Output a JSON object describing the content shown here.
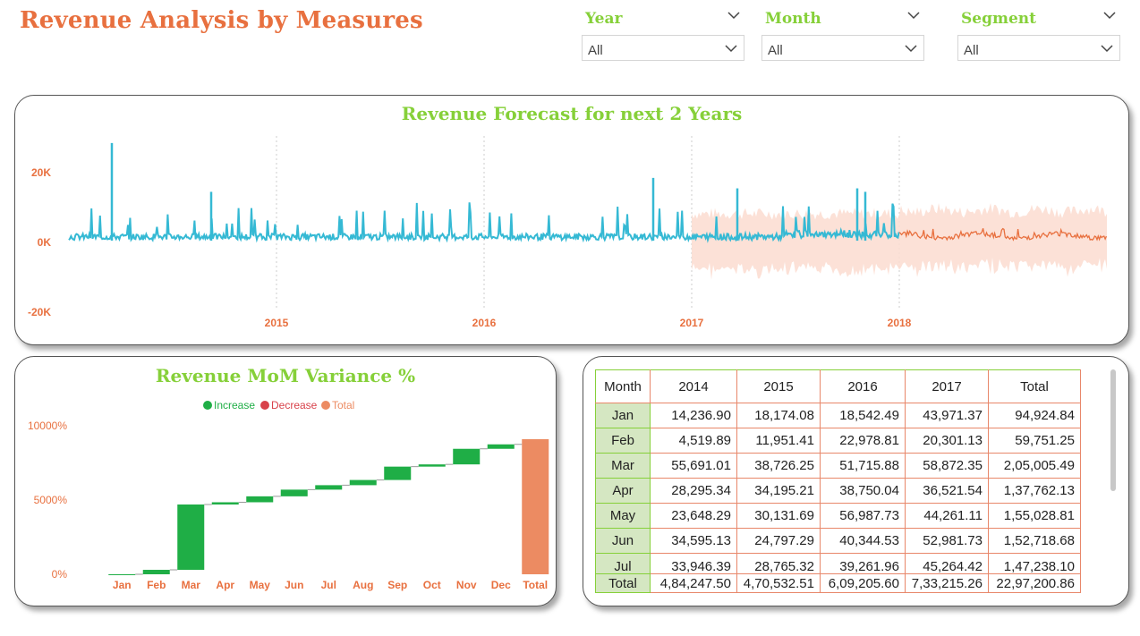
{
  "title": "Revenue Analysis by Measures",
  "slicers": [
    {
      "label": "Year",
      "value": "All"
    },
    {
      "label": "Month",
      "value": "All"
    },
    {
      "label": "Segment",
      "value": "All"
    }
  ],
  "forecast": {
    "title": "Revenue Forecast for next 2 Years",
    "y_ticks": [
      "20K",
      "0K",
      "-20K"
    ],
    "x_ticks": [
      "2015",
      "2016",
      "2017",
      "2018"
    ]
  },
  "variance": {
    "title": "Revenue MoM Variance %",
    "legend": [
      "Increase",
      "Decrease",
      "Total"
    ],
    "y_ticks": [
      "10000%",
      "5000%",
      "0%"
    ]
  },
  "matrix": {
    "header": [
      "Month",
      "2014",
      "2015",
      "2016",
      "2017",
      "Total"
    ],
    "rows": [
      [
        "Jan",
        "14,236.90",
        "18,174.08",
        "18,542.49",
        "43,971.37",
        "94,924.84"
      ],
      [
        "Feb",
        "4,519.89",
        "11,951.41",
        "22,978.81",
        "20,301.13",
        "59,751.25"
      ],
      [
        "Mar",
        "55,691.01",
        "38,726.25",
        "51,715.88",
        "58,872.35",
        "2,05,005.49"
      ],
      [
        "Apr",
        "28,295.34",
        "34,195.21",
        "38,750.04",
        "36,521.54",
        "1,37,762.13"
      ],
      [
        "May",
        "23,648.29",
        "30,131.69",
        "56,987.73",
        "44,261.11",
        "1,55,028.81"
      ],
      [
        "Jun",
        "34,595.13",
        "24,797.29",
        "40,344.53",
        "52,981.73",
        "1,52,718.68"
      ],
      [
        "Jul",
        "33,946.39",
        "28,765.32",
        "39,261.96",
        "45,264.42",
        "1,47,238.10"
      ]
    ],
    "total": [
      "Total",
      "4,84,247.50",
      "4,70,532.51",
      "6,09,205.60",
      "7,33,215.26",
      "22,97,200.86"
    ]
  },
  "colors": {
    "accent_title": "#e8703f",
    "accent_green": "#86d039",
    "actual": "#35b9d4",
    "forecast": "#e8703f",
    "band": "#fbdcd0",
    "increase": "#1fae46",
    "decrease": "#d8414a",
    "total": "#ec8b62"
  },
  "chart_data": [
    {
      "type": "line",
      "title": "Revenue Forecast for next 2 Years",
      "x_range": [
        "2014-01",
        "2018-12"
      ],
      "ylim": [
        -20000,
        20000
      ],
      "y_ticks": [
        -20000,
        0,
        20000
      ],
      "grid": "vertical dotted at year boundaries",
      "series": [],
      "notes_visible": "actual daily revenue 2014–2017 plus forecast with confidence band 2017–2018"
    },
    {
      "type": "bar",
      "title": "Revenue MoM Variance %",
      "categories": [
        "Jan",
        "Feb",
        "Mar",
        "Apr",
        "May",
        "Jun",
        "Jul",
        "Aug",
        "Sep",
        "Oct",
        "Nov",
        "Dec",
        "Total"
      ],
      "values": [
        0,
        300,
        4400,
        150,
        400,
        450,
        300,
        350,
        900,
        150,
        1050,
        300,
        9100
      ],
      "ylim": [
        0,
        10000
      ],
      "y_ticks": [
        0,
        5000,
        10000
      ],
      "legend_position": "top-center"
    }
  ]
}
